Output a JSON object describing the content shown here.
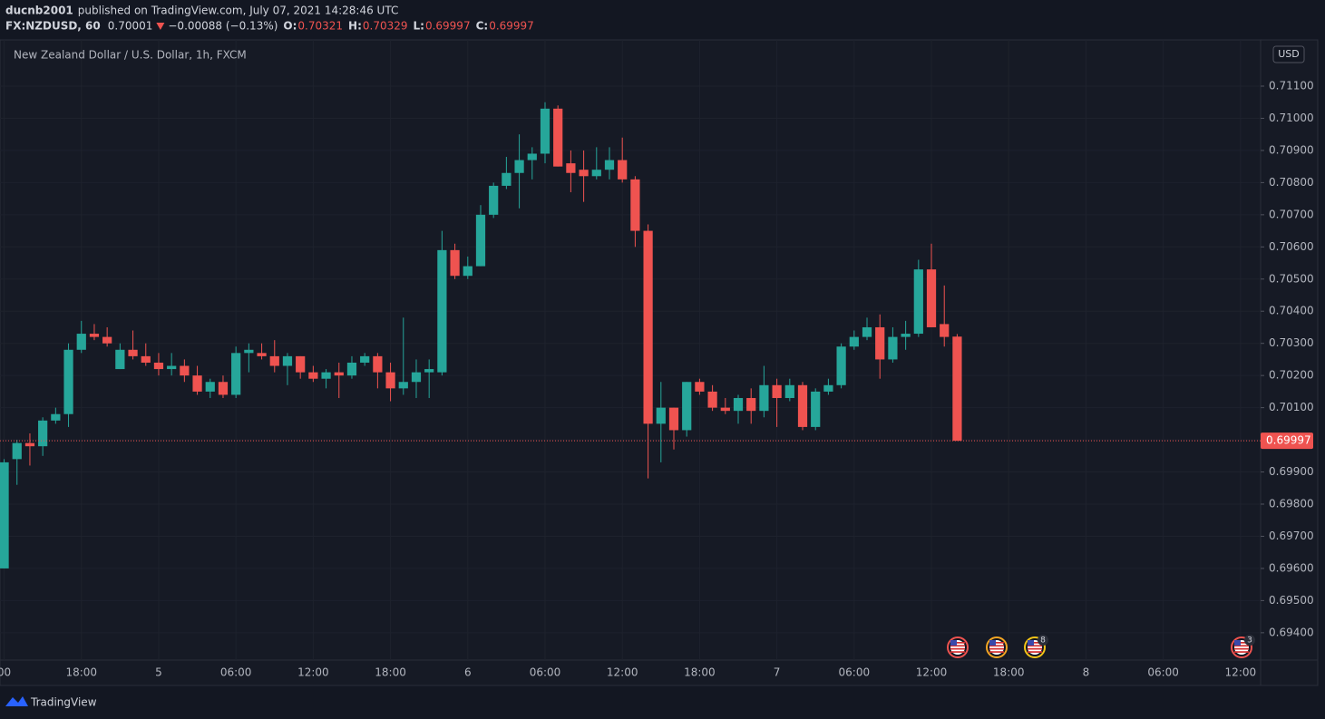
{
  "header": {
    "author": "ducnb2001",
    "published": "published on TradingView.com, July 07, 2021 14:28:46 UTC",
    "symbol": "FX:NZDUSD, 60",
    "last": "0.70001",
    "change": "−0.00088 (−0.13%)",
    "ohlc_labels": [
      "O:",
      "H:",
      "L:",
      "C:"
    ],
    "ohlc_values": [
      "0.70321",
      "0.70329",
      "0.69997",
      "0.69997"
    ]
  },
  "chart_data": {
    "type": "candlestick",
    "title": "New Zealand Dollar / U.S. Dollar, 1h, FXCM",
    "currency": "USD",
    "up_color": "#26a69a",
    "down_color": "#ef5350",
    "x": [
      -12,
      -11,
      -10,
      -9,
      -8,
      -7,
      -6,
      -5,
      -4,
      -3,
      -2,
      -1,
      0,
      1,
      2,
      3,
      4,
      5,
      6,
      7,
      8,
      9,
      10,
      11,
      12,
      13,
      14,
      15,
      16,
      17,
      18,
      19,
      20,
      21,
      22,
      23,
      24,
      25,
      26,
      27,
      28,
      29,
      30,
      31,
      32,
      33,
      34,
      35,
      36,
      37,
      38,
      39,
      40,
      41,
      42,
      43,
      44,
      45,
      46,
      47,
      48,
      49,
      50,
      51,
      52,
      53,
      54,
      55,
      56,
      57,
      58,
      59,
      60,
      61,
      62
    ],
    "open": [
      0.696,
      0.6994,
      0.6999,
      0.6998,
      0.7006,
      0.7008,
      0.7028,
      0.7033,
      0.7032,
      0.7022,
      0.7028,
      0.7026,
      0.7024,
      0.7022,
      0.7023,
      0.702,
      0.7015,
      0.7018,
      0.7014,
      0.7027,
      0.7027,
      0.7026,
      0.7023,
      0.7026,
      0.7021,
      0.7019,
      0.7021,
      0.702,
      0.7024,
      0.7026,
      0.7021,
      0.7016,
      0.7018,
      0.7021,
      0.7021,
      0.7059,
      0.7051,
      0.7054,
      0.707,
      0.7079,
      0.7083,
      0.7087,
      0.7089,
      0.7103,
      0.7086,
      0.7084,
      0.7082,
      0.7084,
      0.7087,
      0.7081,
      0.7065,
      0.7005,
      0.701,
      0.7003,
      0.7018,
      0.7015,
      0.701,
      0.7009,
      0.7013,
      0.7009,
      0.7017,
      0.7013,
      0.7017,
      0.7004,
      0.7015,
      0.7017,
      0.7029,
      0.7032,
      0.7035,
      0.7025,
      0.7032,
      0.7033,
      0.7053,
      0.7036,
      0.70321
    ],
    "high": [
      0.6994,
      0.7,
      0.7002,
      0.7007,
      0.701,
      0.703,
      0.7037,
      0.7036,
      0.7035,
      0.703,
      0.7034,
      0.703,
      0.7027,
      0.7027,
      0.7025,
      0.7023,
      0.7019,
      0.702,
      0.7029,
      0.703,
      0.703,
      0.7031,
      0.7027,
      0.7026,
      0.7023,
      0.7022,
      0.7024,
      0.7026,
      0.7027,
      0.7027,
      0.7024,
      0.7038,
      0.7025,
      0.7025,
      0.7065,
      0.7061,
      0.7057,
      0.7073,
      0.708,
      0.7088,
      0.7095,
      0.7091,
      0.7105,
      0.7104,
      0.709,
      0.709,
      0.7091,
      0.7091,
      0.7094,
      0.7082,
      0.7067,
      0.7018,
      0.701,
      0.7018,
      0.7019,
      0.7017,
      0.7013,
      0.7014,
      0.7016,
      0.7023,
      0.7019,
      0.7019,
      0.7018,
      0.7016,
      0.7019,
      0.703,
      0.7034,
      0.7038,
      0.7039,
      0.7035,
      0.7037,
      0.7056,
      0.7061,
      0.7048,
      0.70329
    ],
    "low": [
      0.696,
      0.6986,
      0.6992,
      0.6995,
      0.7005,
      0.7004,
      0.7027,
      0.7031,
      0.7029,
      0.7022,
      0.7025,
      0.7023,
      0.702,
      0.702,
      0.7018,
      0.7014,
      0.7013,
      0.7013,
      0.7013,
      0.7021,
      0.7025,
      0.7021,
      0.7017,
      0.7019,
      0.7018,
      0.7016,
      0.7013,
      0.7019,
      0.7023,
      0.7016,
      0.7012,
      0.7014,
      0.7013,
      0.7013,
      0.702,
      0.705,
      0.705,
      0.7054,
      0.7069,
      0.7078,
      0.7072,
      0.7081,
      0.7086,
      0.7085,
      0.7077,
      0.7074,
      0.7081,
      0.7081,
      0.708,
      0.706,
      0.6988,
      0.6993,
      0.6997,
      0.7001,
      0.7014,
      0.7009,
      0.7008,
      0.7005,
      0.7005,
      0.7007,
      0.7004,
      0.7012,
      0.7003,
      0.7003,
      0.7014,
      0.7016,
      0.7028,
      0.7031,
      0.7019,
      0.7024,
      0.7028,
      0.7032,
      0.7035,
      0.7029,
      0.69997
    ],
    "close": [
      0.6993,
      0.6999,
      0.6998,
      0.7006,
      0.7008,
      0.7028,
      0.7033,
      0.7032,
      0.703,
      0.7028,
      0.7026,
      0.7024,
      0.7022,
      0.7023,
      0.702,
      0.7015,
      0.7018,
      0.7014,
      0.7027,
      0.7028,
      0.7026,
      0.7023,
      0.7026,
      0.7021,
      0.7019,
      0.7021,
      0.702,
      0.7024,
      0.7026,
      0.7021,
      0.7016,
      0.7018,
      0.7021,
      0.7022,
      0.7059,
      0.7051,
      0.7054,
      0.707,
      0.7079,
      0.7083,
      0.7087,
      0.7089,
      0.7103,
      0.7085,
      0.7083,
      0.7082,
      0.7084,
      0.7087,
      0.7081,
      0.7065,
      0.7005,
      0.701,
      0.7003,
      0.7018,
      0.7015,
      0.701,
      0.7009,
      0.7013,
      0.7009,
      0.7017,
      0.7013,
      0.7017,
      0.7004,
      0.7015,
      0.7017,
      0.7029,
      0.7032,
      0.7035,
      0.7025,
      0.7032,
      0.7033,
      0.7053,
      0.7035,
      0.7032,
      0.69997
    ],
    "last_price": 0.69997,
    "xlim": [
      -12.32,
      85.56
    ],
    "xticks": [
      {
        "value": -12,
        "label": "00"
      },
      {
        "value": -6,
        "label": "18:00"
      },
      {
        "value": 0,
        "label": "5"
      },
      {
        "value": 6,
        "label": "06:00"
      },
      {
        "value": 12,
        "label": "12:00"
      },
      {
        "value": 18,
        "label": "18:00"
      },
      {
        "value": 24,
        "label": "6"
      },
      {
        "value": 30,
        "label": "06:00"
      },
      {
        "value": 36,
        "label": "12:00"
      },
      {
        "value": 42,
        "label": "18:00"
      },
      {
        "value": 48,
        "label": "7"
      },
      {
        "value": 54,
        "label": "06:00"
      },
      {
        "value": 60,
        "label": "12:00"
      },
      {
        "value": 66,
        "label": "18:00"
      },
      {
        "value": 72,
        "label": "8"
      },
      {
        "value": 78,
        "label": "06:00"
      },
      {
        "value": 84,
        "label": "12:00"
      }
    ],
    "ylim": [
      0.69315,
      0.71241
    ],
    "yticks": [
      {
        "value": 0.694,
        "label": "0.69400"
      },
      {
        "value": 0.695,
        "label": "0.69500"
      },
      {
        "value": 0.696,
        "label": "0.69600"
      },
      {
        "value": 0.697,
        "label": "0.69700"
      },
      {
        "value": 0.698,
        "label": "0.69800"
      },
      {
        "value": 0.699,
        "label": "0.69900"
      },
      {
        "value": 0.7,
        "label": "0.70000"
      },
      {
        "value": 0.701,
        "label": "0.70100"
      },
      {
        "value": 0.702,
        "label": "0.70200"
      },
      {
        "value": 0.703,
        "label": "0.70300"
      },
      {
        "value": 0.704,
        "label": "0.70400"
      },
      {
        "value": 0.705,
        "label": "0.70500"
      },
      {
        "value": 0.706,
        "label": "0.70600"
      },
      {
        "value": 0.707,
        "label": "0.70700"
      },
      {
        "value": 0.708,
        "label": "0.70800"
      },
      {
        "value": 0.709,
        "label": "0.70900"
      },
      {
        "value": 0.71,
        "label": "0.71000"
      },
      {
        "value": 0.711,
        "label": "0.71100"
      }
    ],
    "grid": true
  },
  "event_badges": [
    "8",
    "3"
  ],
  "footer": {
    "brand": "TradingView"
  }
}
